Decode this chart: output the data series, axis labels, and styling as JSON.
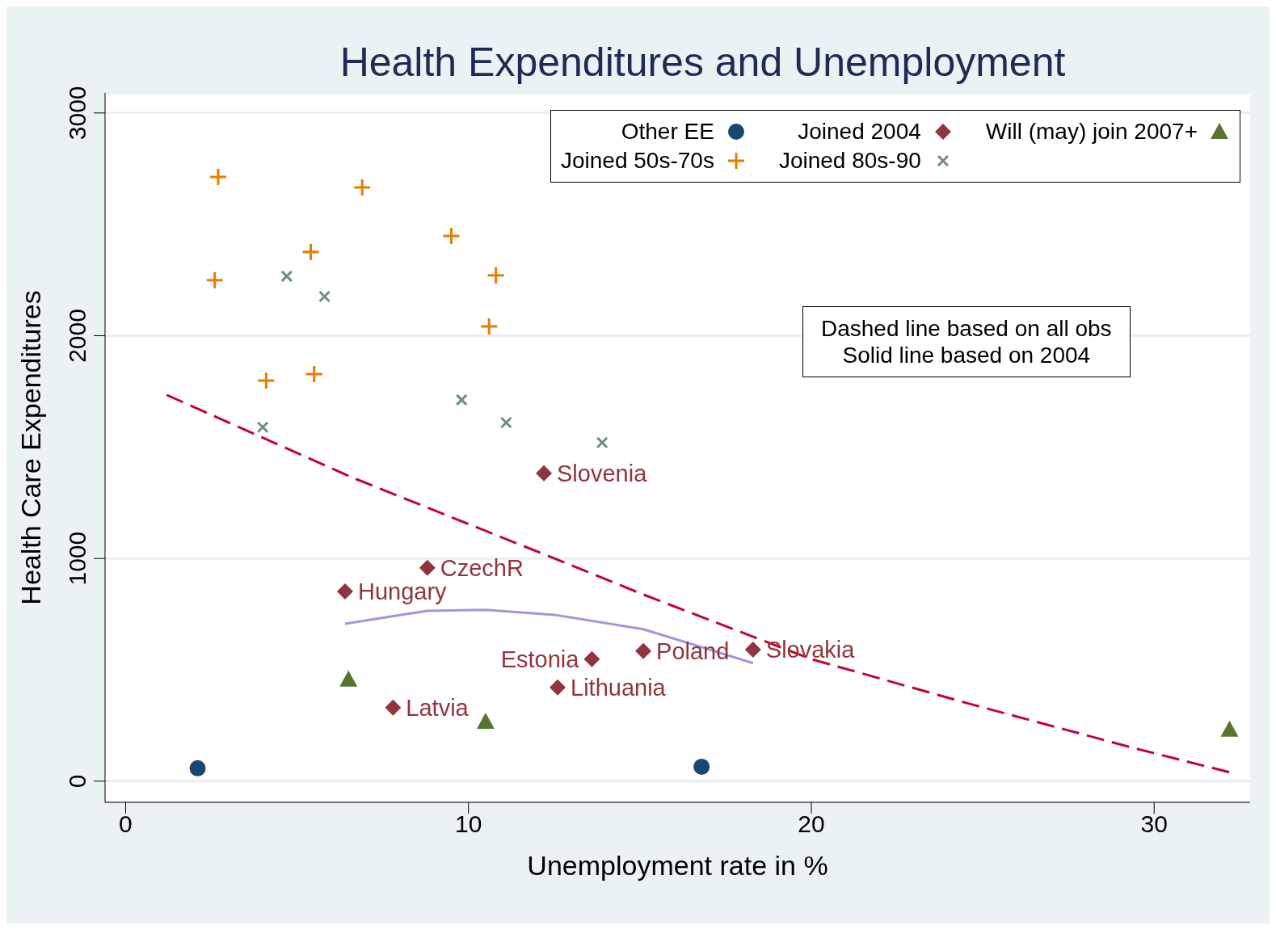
{
  "chart_data": {
    "type": "scatter",
    "title": "Health Expenditures and Unemployment",
    "xlabel": "Unemployment rate in %",
    "ylabel": "Health Care Expenditures",
    "xlim": [
      -0.6,
      32.8
    ],
    "xticks": [
      0,
      10,
      20,
      30
    ],
    "ylim": [
      -95,
      3090
    ],
    "yticks": [
      0,
      1000,
      2000,
      3000
    ],
    "grid": "y",
    "legend": "top right",
    "annotations": [
      "Dashed line based on all obs",
      "Solid line based on 2004"
    ],
    "series": [
      {
        "name": "Other EE",
        "color": "#1a476f",
        "marker": "circle",
        "x": [
          2.1,
          16.8
        ],
        "values": [
          58,
          65
        ]
      },
      {
        "name": "Joined 2004",
        "color": "#90353b",
        "marker": "diamond",
        "x": [
          12.2,
          8.8,
          6.4,
          7.8,
          12.6,
          13.6,
          15.1,
          18.3
        ],
        "values": [
          1382,
          958,
          852,
          330,
          421,
          548,
          584,
          591
        ],
        "value_labels": [
          "Slovenia",
          "CzechR",
          "Hungary",
          "Latvia",
          "Lithuania",
          "Estonia",
          "Poland",
          "Slovakia"
        ]
      },
      {
        "name": "Will (may) join 2007+",
        "color": "#55752f",
        "marker": "triangle",
        "x": [
          6.5,
          10.5,
          32.2
        ],
        "values": [
          457,
          268,
          232
        ]
      },
      {
        "name": "Joined 50s-70s",
        "color": "#e37e00",
        "marker": "plus",
        "x": [
          2.7,
          2.6,
          6.9,
          5.4,
          9.5,
          10.8,
          10.6,
          4.1,
          5.5
        ],
        "values": [
          2713,
          2249,
          2666,
          2376,
          2448,
          2271,
          2042,
          1799,
          1828
        ]
      },
      {
        "name": "Joined 80s-90",
        "color": "#6e8e84",
        "marker": "cross",
        "x": [
          4.7,
          5.8,
          4.0,
          9.8,
          11.1,
          13.9
        ],
        "values": [
          2267,
          2176,
          1589,
          1712,
          1610,
          1520
        ]
      },
      {
        "type": "line",
        "color": "#c10534",
        "line_style": "dashed",
        "x": [
          1.2,
          6.6,
          12.2,
          15.1,
          20,
          24.6,
          29.4,
          32.2
        ],
        "values": [
          1734,
          1364,
          1019,
          838,
          548,
          348,
          149,
          40
        ]
      },
      {
        "type": "line",
        "color": "#9999dd",
        "line_style": "solid",
        "x": [
          6.4,
          8.8,
          10.5,
          12.5,
          15.1,
          16.8,
          18.3
        ],
        "values": [
          707,
          765,
          769,
          747,
          682,
          602,
          530
        ]
      }
    ]
  }
}
